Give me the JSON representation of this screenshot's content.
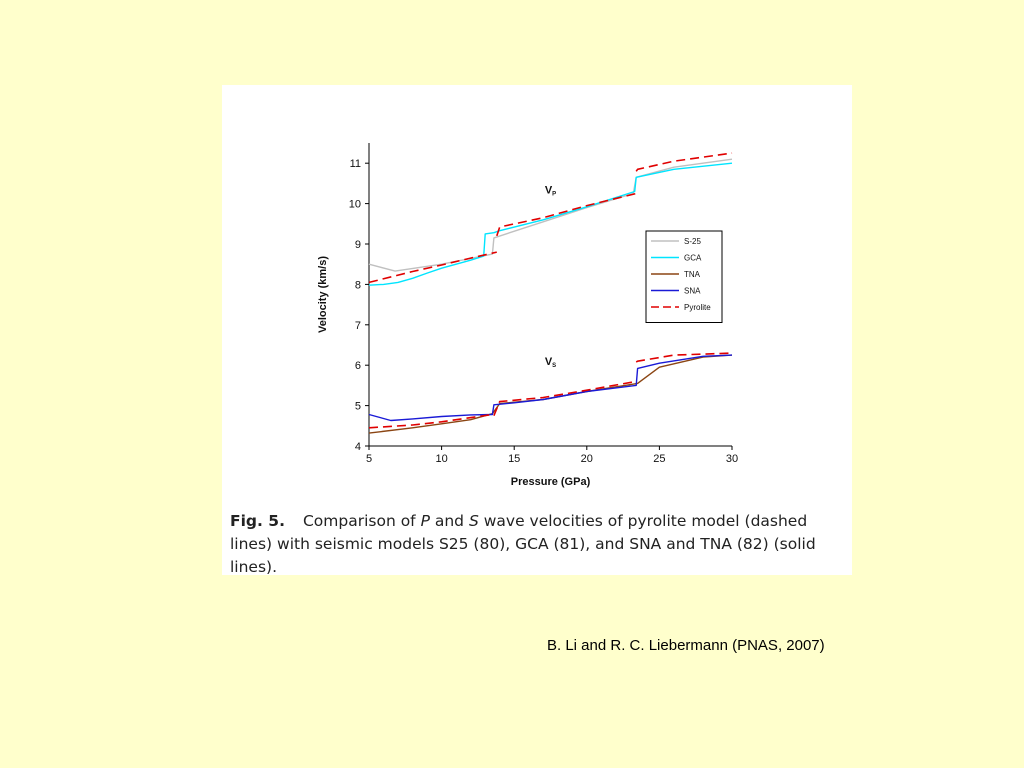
{
  "credit": "B. Li and R. C. Liebermann (PNAS, 2007)",
  "caption": {
    "label": "Fig. 5.",
    "t1": "Comparison of ",
    "P": "P",
    "t2": " and ",
    "S": "S",
    "t3": " wave velocities of pyrolite model (dashed lines) with seismic models S25 (80), GCA (81), and SNA and TNA (82) (solid lines)."
  },
  "chart_data": {
    "type": "line",
    "title": "",
    "xlabel": "Pressure (GPa)",
    "ylabel": "Velocity (km/s)",
    "xlim": [
      5,
      30
    ],
    "ylim": [
      4,
      11.5
    ],
    "xticks": [
      5,
      10,
      15,
      20,
      25,
      30
    ],
    "yticks": [
      4,
      5,
      6,
      7,
      8,
      9,
      10,
      11
    ],
    "grid": false,
    "legend_position": "right",
    "annotations": [
      {
        "main": "V",
        "sub": "P",
        "x": 17.5,
        "y": 10.25
      },
      {
        "main": "V",
        "sub": "S",
        "x": 17.5,
        "y": 6.0
      }
    ],
    "series": [
      {
        "name": "S-25",
        "color": "#c0c0c0",
        "dash": false,
        "segments": [
          {
            "x": [
              5,
              6.8,
              10,
              13.5,
              13.6,
              17,
              20,
              23.2,
              23.4,
              26,
              30
            ],
            "y": [
              8.5,
              8.33,
              8.5,
              8.75,
              9.15,
              9.55,
              9.9,
              10.25,
              10.65,
              10.9,
              11.1
            ]
          }
        ]
      },
      {
        "name": "GCA",
        "color": "#00e5ff",
        "dash": false,
        "segments": [
          {
            "x": [
              5,
              6,
              7,
              8,
              9,
              10,
              11,
              12,
              12.9,
              13,
              13.6,
              14,
              17,
              20,
              23.3,
              23.4,
              26,
              30
            ],
            "y": [
              7.98,
              8.0,
              8.05,
              8.15,
              8.28,
              8.4,
              8.5,
              8.6,
              8.7,
              9.25,
              9.28,
              9.33,
              9.6,
              9.92,
              10.3,
              10.65,
              10.85,
              11.0
            ]
          }
        ]
      },
      {
        "name": "TNA",
        "color": "#8b4513",
        "dash": false,
        "segments": [
          {
            "x": [
              5,
              8,
              10,
              12,
              13.5,
              14,
              17,
              20,
              23.5,
              25,
              28,
              30
            ],
            "y": [
              4.32,
              4.45,
              4.55,
              4.65,
              4.8,
              5.05,
              5.15,
              5.35,
              5.55,
              5.95,
              6.2,
              6.25
            ]
          }
        ]
      },
      {
        "name": "SNA",
        "color": "#1a1ad6",
        "dash": false,
        "segments": [
          {
            "x": [
              5,
              6.5,
              8,
              10,
              12,
              13.5,
              13.6,
              15,
              17,
              20,
              23.4,
              23.5,
              25,
              28,
              30
            ],
            "y": [
              4.78,
              4.63,
              4.67,
              4.73,
              4.77,
              4.78,
              5.02,
              5.07,
              5.15,
              5.35,
              5.5,
              5.92,
              6.05,
              6.22,
              6.25
            ]
          }
        ]
      },
      {
        "name": "Pyrolite",
        "color": "#e00000",
        "dash": true,
        "segments": [
          {
            "x": [
              5,
              8,
              10,
              12,
              13.8
            ],
            "y": [
              8.05,
              8.32,
              8.48,
              8.65,
              8.8
            ]
          },
          {
            "x": [
              13.8,
              14,
              17,
              20,
              23.4
            ],
            "y": [
              9.2,
              9.42,
              9.65,
              9.95,
              10.25
            ]
          },
          {
            "x": [
              23.4,
              23.5,
              26,
              30
            ],
            "y": [
              10.8,
              10.85,
              11.05,
              11.25
            ]
          },
          {
            "x": [
              5,
              8,
              10,
              13.5
            ],
            "y": [
              4.45,
              4.52,
              4.6,
              4.78
            ]
          },
          {
            "x": [
              13.6,
              14,
              17,
              20,
              23.4
            ],
            "y": [
              4.75,
              5.1,
              5.2,
              5.38,
              5.6
            ]
          },
          {
            "x": [
              23.4,
              23.5,
              26,
              30
            ],
            "y": [
              6.08,
              6.1,
              6.25,
              6.3
            ]
          }
        ]
      }
    ]
  }
}
